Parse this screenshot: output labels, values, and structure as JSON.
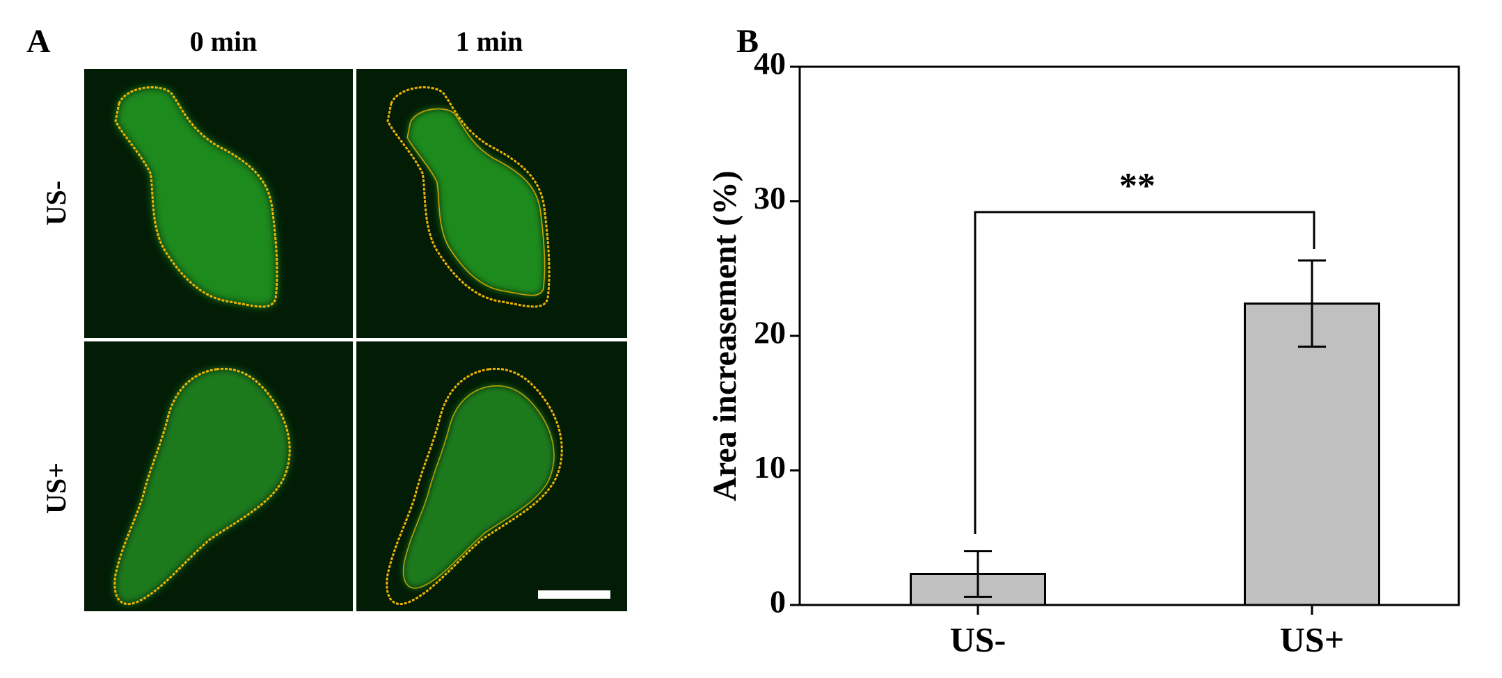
{
  "panel_a": {
    "label": "A",
    "columns": [
      "0 min",
      "1 min"
    ],
    "rows": [
      "US-",
      "US+"
    ]
  },
  "panel_b_label": "B",
  "chart_data": {
    "type": "bar",
    "ylabel": "Area increasement (%)",
    "categories": [
      "US-",
      "US+"
    ],
    "values": [
      2.3,
      22.4
    ],
    "errors": [
      1.7,
      3.2
    ],
    "color": "#c0c0c0",
    "ylim": [
      0,
      40
    ],
    "yticks": [
      0,
      10,
      20,
      30,
      40
    ],
    "annotation": "**"
  }
}
